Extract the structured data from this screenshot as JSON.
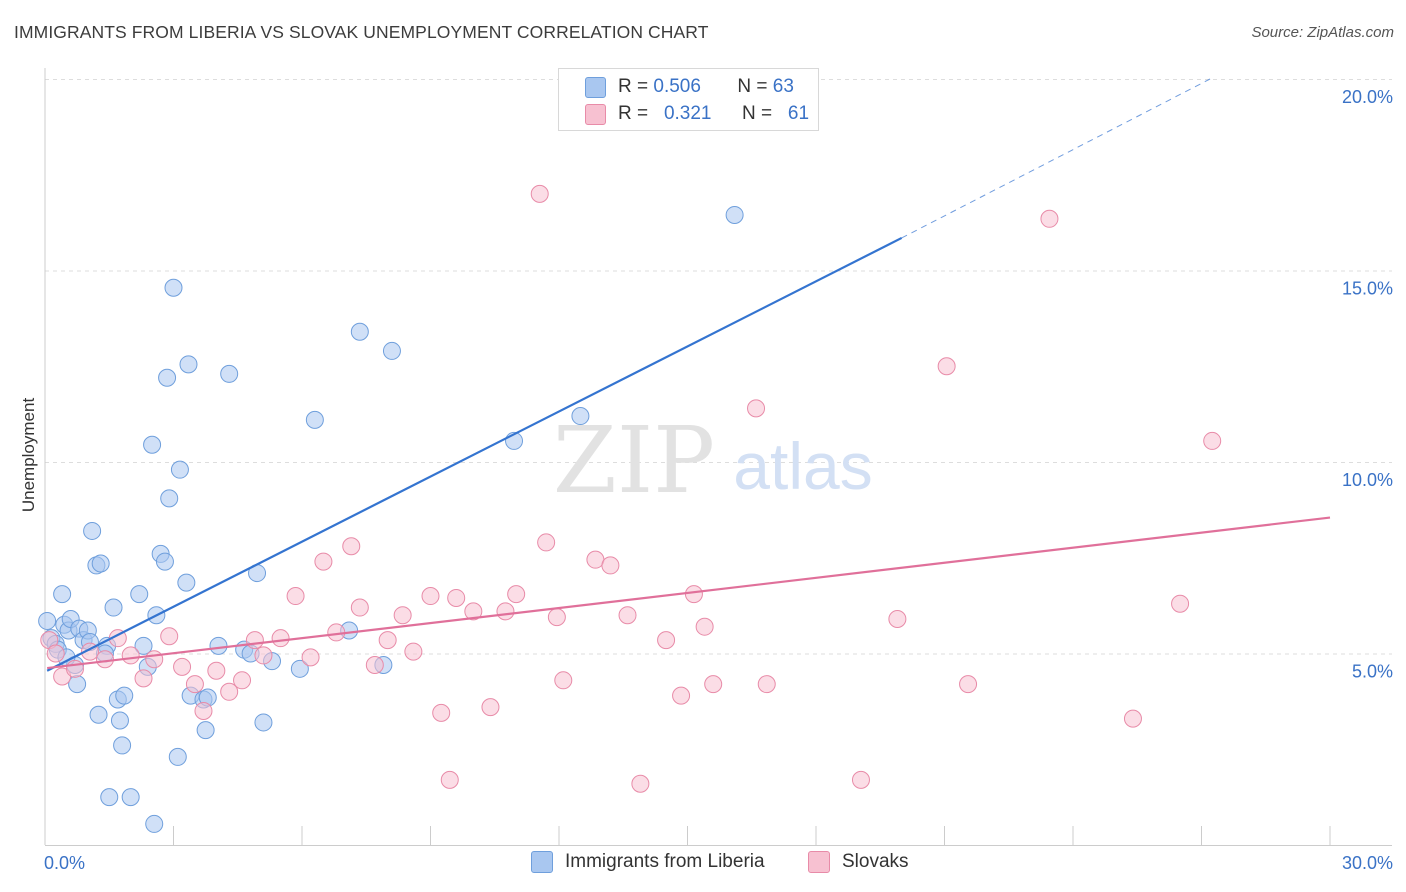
{
  "title": "IMMIGRANTS FROM LIBERIA VS SLOVAK UNEMPLOYMENT CORRELATION CHART",
  "source": "Source: ZipAtlas.com",
  "watermark": {
    "zip": "ZIP",
    "atlas": "atlas"
  },
  "legend": {
    "rows": [
      {
        "r_label": "R =",
        "r_value": "0.506",
        "n_label": "N =",
        "n_value": "63",
        "color": "#a9c7f0",
        "border": "#6f9fdc"
      },
      {
        "r_label": "R =",
        "r_value": "0.321",
        "n_label": "N =",
        "n_value": "61",
        "color": "#f7c1d1",
        "border": "#e88ba8"
      }
    ]
  },
  "chart_data": {
    "type": "scatter",
    "title": "IMMIGRANTS FROM LIBERIA VS SLOVAK UNEMPLOYMENT CORRELATION CHART",
    "xlabel": "",
    "ylabel": "Unemployment",
    "xlim": [
      0,
      30
    ],
    "ylim": [
      0,
      20
    ],
    "x_tick_labels": [
      "0.0%",
      "30.0%"
    ],
    "y_tick_labels": [
      "5.0%",
      "10.0%",
      "15.0%",
      "20.0%"
    ],
    "y_ticks": [
      5,
      10,
      15,
      20
    ],
    "grid": true,
    "legend_position": "top-center",
    "series": [
      {
        "name": "Immigrants from Liberia",
        "color": "#a9c7f0",
        "stroke": "#6f9fdc",
        "trend_color": "#3474d0",
        "trend": {
          "x0": 0.05,
          "y0": 4.55,
          "x1": 20.0,
          "y1": 15.85,
          "dash_x1": 27.2,
          "dash_y1": 20.0
        },
        "points": [
          [
            0.05,
            5.85
          ],
          [
            0.15,
            5.4
          ],
          [
            0.25,
            5.25
          ],
          [
            0.3,
            5.1
          ],
          [
            0.4,
            6.55
          ],
          [
            0.45,
            5.75
          ],
          [
            0.55,
            5.6
          ],
          [
            0.6,
            5.9
          ],
          [
            0.7,
            4.7
          ],
          [
            0.75,
            4.2
          ],
          [
            0.8,
            5.65
          ],
          [
            0.9,
            5.35
          ],
          [
            1.0,
            5.6
          ],
          [
            1.05,
            5.3
          ],
          [
            1.1,
            8.2
          ],
          [
            1.2,
            7.3
          ],
          [
            1.3,
            7.35
          ],
          [
            1.25,
            3.4
          ],
          [
            1.45,
            5.2
          ],
          [
            1.6,
            6.2
          ],
          [
            1.7,
            3.8
          ],
          [
            1.75,
            3.25
          ],
          [
            1.8,
            2.6
          ],
          [
            1.85,
            3.9
          ],
          [
            1.5,
            1.25
          ],
          [
            2.0,
            1.25
          ],
          [
            2.2,
            6.55
          ],
          [
            2.3,
            5.2
          ],
          [
            2.4,
            4.65
          ],
          [
            2.5,
            10.45
          ],
          [
            2.6,
            6.0
          ],
          [
            2.55,
            0.55
          ],
          [
            2.7,
            7.6
          ],
          [
            2.8,
            7.4
          ],
          [
            2.85,
            12.2
          ],
          [
            2.9,
            9.05
          ],
          [
            3.0,
            14.55
          ],
          [
            3.1,
            2.3
          ],
          [
            3.15,
            9.8
          ],
          [
            3.3,
            6.85
          ],
          [
            3.35,
            12.55
          ],
          [
            3.4,
            3.9
          ],
          [
            3.7,
            3.8
          ],
          [
            3.75,
            3.0
          ],
          [
            3.8,
            3.85
          ],
          [
            4.05,
            5.2
          ],
          [
            4.3,
            12.3
          ],
          [
            4.65,
            5.1
          ],
          [
            4.8,
            5.0
          ],
          [
            4.95,
            7.1
          ],
          [
            5.1,
            3.2
          ],
          [
            5.3,
            4.8
          ],
          [
            5.95,
            4.6
          ],
          [
            6.3,
            11.1
          ],
          [
            7.1,
            5.6
          ],
          [
            7.35,
            13.4
          ],
          [
            7.9,
            4.7
          ],
          [
            8.1,
            12.9
          ],
          [
            10.95,
            10.55
          ],
          [
            12.5,
            11.2
          ],
          [
            16.1,
            16.45
          ],
          [
            0.5,
            4.9
          ],
          [
            1.4,
            5.0
          ]
        ]
      },
      {
        "name": "Slovaks",
        "color": "#f7c1d1",
        "stroke": "#e88ba8",
        "trend_color": "#e0709a",
        "trend": {
          "x0": 0.05,
          "y0": 4.62,
          "x1": 30.0,
          "y1": 8.55
        },
        "points": [
          [
            0.1,
            5.35
          ],
          [
            0.25,
            5.0
          ],
          [
            0.4,
            4.4
          ],
          [
            0.7,
            4.6
          ],
          [
            1.05,
            5.05
          ],
          [
            1.4,
            4.85
          ],
          [
            1.7,
            5.4
          ],
          [
            2.0,
            4.95
          ],
          [
            2.3,
            4.35
          ],
          [
            2.55,
            4.85
          ],
          [
            2.9,
            5.45
          ],
          [
            3.2,
            4.65
          ],
          [
            3.5,
            4.2
          ],
          [
            3.7,
            3.5
          ],
          [
            4.0,
            4.55
          ],
          [
            4.3,
            4.0
          ],
          [
            4.6,
            4.3
          ],
          [
            4.9,
            5.35
          ],
          [
            5.1,
            4.95
          ],
          [
            5.5,
            5.4
          ],
          [
            5.85,
            6.5
          ],
          [
            6.2,
            4.9
          ],
          [
            6.5,
            7.4
          ],
          [
            6.8,
            5.55
          ],
          [
            7.15,
            7.8
          ],
          [
            7.35,
            6.2
          ],
          [
            7.7,
            4.7
          ],
          [
            8.0,
            5.35
          ],
          [
            8.35,
            6.0
          ],
          [
            8.6,
            5.05
          ],
          [
            9.0,
            6.5
          ],
          [
            9.25,
            3.45
          ],
          [
            9.45,
            1.7
          ],
          [
            9.6,
            6.45
          ],
          [
            10.0,
            6.1
          ],
          [
            10.4,
            3.6
          ],
          [
            10.75,
            6.1
          ],
          [
            11.0,
            6.55
          ],
          [
            11.55,
            17.0
          ],
          [
            11.7,
            7.9
          ],
          [
            11.95,
            5.95
          ],
          [
            12.1,
            4.3
          ],
          [
            12.85,
            7.45
          ],
          [
            13.2,
            7.3
          ],
          [
            13.6,
            6.0
          ],
          [
            13.9,
            1.6
          ],
          [
            14.5,
            5.35
          ],
          [
            14.85,
            3.9
          ],
          [
            15.15,
            6.55
          ],
          [
            15.4,
            5.7
          ],
          [
            15.6,
            4.2
          ],
          [
            16.6,
            11.4
          ],
          [
            16.85,
            4.2
          ],
          [
            19.05,
            1.7
          ],
          [
            19.9,
            5.9
          ],
          [
            21.05,
            12.5
          ],
          [
            21.55,
            4.2
          ],
          [
            23.45,
            16.35
          ],
          [
            25.4,
            3.3
          ],
          [
            26.5,
            6.3
          ],
          [
            27.25,
            10.55
          ]
        ]
      }
    ]
  }
}
